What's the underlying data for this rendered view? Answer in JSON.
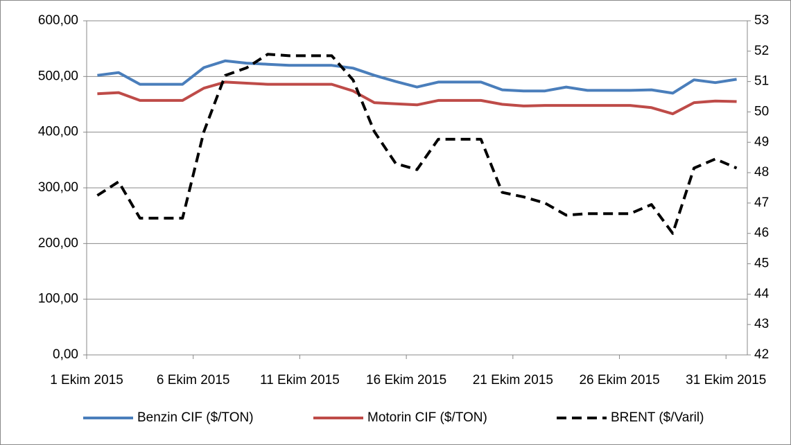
{
  "chart_data": {
    "type": "line",
    "x": [
      1,
      2,
      3,
      4,
      5,
      6,
      7,
      8,
      9,
      10,
      11,
      12,
      13,
      14,
      15,
      16,
      17,
      18,
      19,
      20,
      21,
      22,
      23,
      24,
      25,
      26,
      27,
      28,
      29,
      30,
      31
    ],
    "xlim": [
      1,
      32
    ],
    "xticks": [
      {
        "value": 1,
        "label": "1 Ekim 2015"
      },
      {
        "value": 6,
        "label": "6 Ekim 2015"
      },
      {
        "value": 11,
        "label": "11 Ekim 2015"
      },
      {
        "value": 16,
        "label": "16 Ekim 2015"
      },
      {
        "value": 21,
        "label": "21 Ekim 2015"
      },
      {
        "value": 26,
        "label": "26 Ekim 2015"
      },
      {
        "value": 31,
        "label": "31 Ekim 2015"
      }
    ],
    "ylim": [
      0,
      600
    ],
    "yticks": [
      {
        "value": 0,
        "label": "0,00"
      },
      {
        "value": 100,
        "label": "100,00"
      },
      {
        "value": 200,
        "label": "200,00"
      },
      {
        "value": 300,
        "label": "300,00"
      },
      {
        "value": 400,
        "label": "400,00"
      },
      {
        "value": 500,
        "label": "500,00"
      },
      {
        "value": 600,
        "label": "600,00"
      }
    ],
    "y2lim": [
      42,
      53
    ],
    "y2ticks": [
      42,
      43,
      44,
      45,
      46,
      47,
      48,
      49,
      50,
      51,
      52,
      53
    ],
    "grid": true,
    "legend": "bottom",
    "series": [
      {
        "name": "Benzin CIF ($/TON)",
        "color": "#4a7ebb",
        "dash": "solid",
        "values": [
          502,
          507,
          486,
          486,
          486,
          516,
          528,
          524,
          522,
          520,
          520,
          520,
          515,
          502,
          491,
          481,
          490,
          490,
          490,
          476,
          474,
          474,
          481,
          475,
          475,
          475,
          476,
          470,
          494,
          489,
          495
        ]
      },
      {
        "name": "Motorin CIF ($/TON)",
        "color": "#be4b48",
        "dash": "solid",
        "values": [
          469,
          471,
          457,
          457,
          457,
          479,
          490,
          488,
          486,
          486,
          486,
          486,
          474,
          453,
          451,
          449,
          457,
          457,
          457,
          450,
          447,
          448,
          448,
          448,
          448,
          448,
          444,
          433,
          453,
          456,
          455
        ]
      },
      {
        "name": "BRENT ($/Varil)",
        "color": "#000000",
        "dash": "dashed",
        "axis": "y2",
        "values": [
          47.25,
          47.7,
          46.5,
          46.5,
          46.5,
          49.35,
          51.2,
          51.45,
          51.9,
          51.85,
          51.85,
          51.85,
          51.05,
          49.35,
          48.3,
          48.1,
          49.1,
          49.1,
          49.1,
          47.35,
          47.2,
          47.0,
          46.6,
          46.65,
          46.65,
          46.65,
          46.95,
          46.0,
          48.15,
          48.45,
          48.15
        ]
      }
    ]
  }
}
